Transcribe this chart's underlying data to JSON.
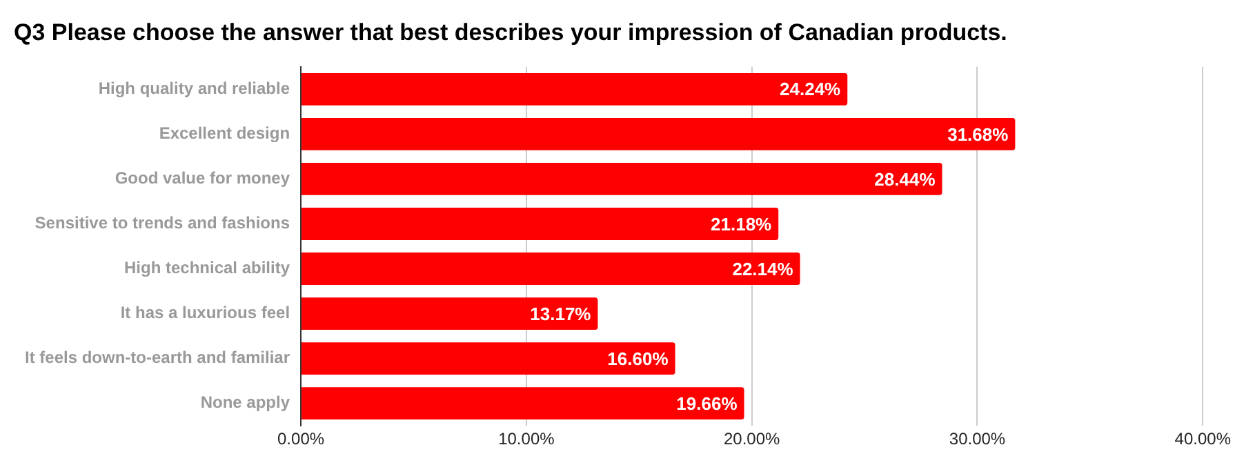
{
  "chart_data": {
    "type": "bar",
    "orientation": "horizontal",
    "title": "Q3 Please choose the answer that best describes your impression of Canadian products.",
    "categories": [
      "High quality and reliable",
      "Excellent design",
      "Good value for money",
      "Sensitive to trends and fashions",
      "High technical ability",
      "It has a luxurious feel",
      "It feels down-to-earth and familiar",
      "None apply"
    ],
    "values": [
      24.24,
      31.68,
      28.44,
      21.18,
      22.14,
      13.17,
      16.6,
      19.66
    ],
    "value_labels": [
      "24.24%",
      "31.68%",
      "28.44%",
      "21.18%",
      "22.14%",
      "13.17%",
      "16.60%",
      "19.66%"
    ],
    "color": "#ff0000",
    "xlim": [
      0,
      40
    ],
    "xticks": [
      {
        "value": 0,
        "label": "0.00%"
      },
      {
        "value": 10,
        "label": "10.00%"
      },
      {
        "value": 20,
        "label": "20.00%"
      },
      {
        "value": 30,
        "label": "30.00%"
      },
      {
        "value": 40,
        "label": "40.00%"
      }
    ],
    "grid": "x"
  }
}
